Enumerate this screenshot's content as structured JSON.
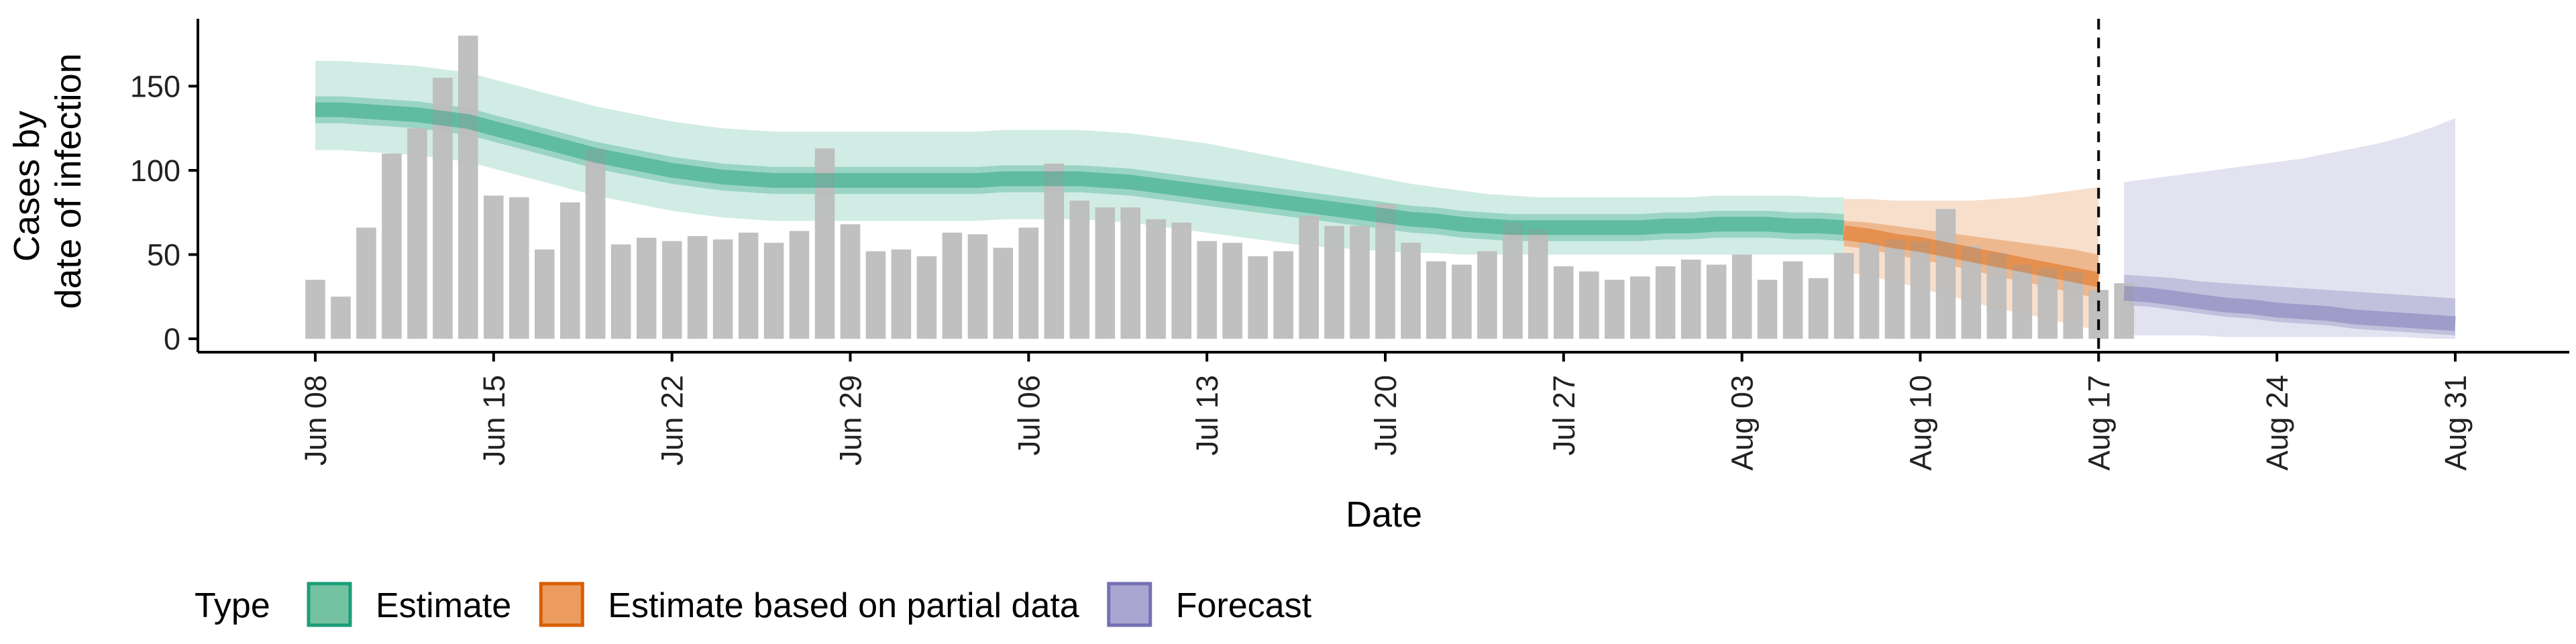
{
  "chart_data": {
    "type": "bar",
    "xlabel": "Date",
    "ylabel_lines": [
      "Cases by",
      "date of infection"
    ],
    "yticks": [
      0,
      50,
      100,
      150
    ],
    "ylim": [
      0,
      190
    ],
    "xticks": [
      "Jun 08",
      "Jun 15",
      "Jun 22",
      "Jun 29",
      "Jul 06",
      "Jul 13",
      "Jul 20",
      "Jul 27",
      "Aug 03",
      "Aug 10",
      "Aug 17",
      "Aug 24",
      "Aug 31"
    ],
    "start_date": "Jun 08",
    "end_date": "Aug 31",
    "vline_date": "Aug 17",
    "reported_cases": [
      35,
      25,
      66,
      110,
      125,
      155,
      180,
      85,
      84,
      53,
      81,
      113,
      56,
      60,
      58,
      61,
      59,
      63,
      57,
      64,
      113,
      68,
      52,
      53,
      49,
      63,
      62,
      54,
      66,
      104,
      82,
      78,
      78,
      71,
      69,
      58,
      57,
      49,
      52,
      73,
      67,
      67,
      80,
      57,
      46,
      44,
      52,
      69,
      65,
      43,
      40,
      35,
      37,
      43,
      47,
      44,
      50,
      35,
      46,
      36,
      51,
      57,
      59,
      58,
      77,
      55,
      51,
      44,
      42,
      40,
      29,
      33
    ],
    "series": [
      {
        "name": "Estimate",
        "color": "#1b9e77",
        "start": "Jun 08",
        "median": [
          136,
          136,
          135,
          134,
          133,
          131,
          129,
          125,
          121,
          117,
          113,
          109,
          106,
          103,
          100,
          98,
          96,
          95,
          94,
          94,
          94,
          94,
          94,
          94,
          94,
          94,
          94,
          95,
          95,
          95,
          95,
          94,
          93,
          91,
          89,
          87,
          85,
          83,
          81,
          79,
          77,
          75,
          73,
          71,
          70,
          68,
          67,
          66,
          66,
          66,
          66,
          66,
          66,
          67,
          67,
          68,
          68,
          68,
          67,
          67,
          66
        ],
        "mid_lo": [
          128,
          128,
          127,
          126,
          125,
          123,
          121,
          117,
          113,
          109,
          105,
          101,
          98,
          95,
          92,
          90,
          88,
          87,
          86,
          86,
          86,
          86,
          86,
          86,
          86,
          86,
          86,
          87,
          87,
          87,
          87,
          86,
          85,
          83,
          81,
          79,
          77,
          75,
          73,
          71,
          69,
          67,
          65,
          63,
          62,
          60,
          59,
          58,
          58,
          58,
          58,
          58,
          58,
          59,
          59,
          60,
          60,
          60,
          59,
          59,
          58
        ],
        "mid_hi": [
          144,
          144,
          143,
          142,
          141,
          139,
          137,
          133,
          129,
          125,
          121,
          117,
          114,
          111,
          108,
          106,
          104,
          103,
          102,
          102,
          102,
          102,
          102,
          102,
          102,
          102,
          102,
          103,
          103,
          103,
          103,
          102,
          101,
          99,
          97,
          95,
          93,
          91,
          89,
          87,
          85,
          83,
          81,
          79,
          78,
          76,
          75,
          74,
          74,
          74,
          74,
          74,
          74,
          75,
          75,
          76,
          76,
          76,
          75,
          75,
          74
        ],
        "lo": [
          112,
          112,
          111,
          110,
          109,
          107,
          105,
          101,
          97,
          93,
          89,
          85,
          82,
          79,
          76,
          74,
          72,
          71,
          70,
          70,
          70,
          70,
          70,
          70,
          70,
          70,
          70,
          71,
          71,
          71,
          71,
          70,
          69,
          67,
          65,
          63,
          61,
          59,
          57,
          55,
          54,
          53,
          52,
          51,
          51,
          50,
          50,
          50,
          50,
          50,
          50,
          50,
          50,
          50,
          50,
          50,
          50,
          50,
          50,
          50,
          50
        ],
        "hi": [
          165,
          165,
          164,
          163,
          162,
          160,
          158,
          154,
          150,
          146,
          142,
          138,
          135,
          132,
          129,
          127,
          125,
          124,
          123,
          123,
          123,
          123,
          123,
          123,
          123,
          123,
          123,
          124,
          124,
          124,
          124,
          123,
          122,
          120,
          118,
          116,
          113,
          110,
          107,
          104,
          101,
          98,
          95,
          92,
          90,
          88,
          86,
          85,
          84,
          84,
          84,
          84,
          84,
          84,
          84,
          85,
          85,
          85,
          85,
          84,
          84
        ]
      },
      {
        "name": "Estimate based on partial data",
        "color": "#d95f02",
        "start": "Aug 07",
        "median": [
          63,
          61,
          58,
          56,
          53,
          50,
          47,
          44,
          41,
          38,
          35
        ],
        "mid_lo": [
          55,
          53,
          50,
          47,
          44,
          41,
          37,
          34,
          31,
          27,
          24
        ],
        "mid_hi": [
          70,
          69,
          67,
          65,
          63,
          61,
          59,
          57,
          55,
          53,
          50
        ],
        "lo": [
          40,
          37,
          34,
          30,
          26,
          22,
          18,
          15,
          12,
          8,
          5
        ],
        "hi": [
          83,
          83,
          82,
          82,
          82,
          82,
          83,
          84,
          86,
          88,
          90
        ]
      },
      {
        "name": "Forecast",
        "color": "#7570b3",
        "start": "Aug 18",
        "median": [
          27,
          26,
          24,
          22,
          20,
          19,
          17,
          16,
          15,
          13,
          12,
          11,
          10,
          9
        ],
        "mid_lo": [
          20,
          19,
          17,
          15,
          13,
          12,
          10,
          9,
          8,
          6,
          5,
          4,
          3,
          2
        ],
        "mid_hi": [
          38,
          37,
          36,
          34,
          33,
          32,
          31,
          30,
          29,
          28,
          27,
          26,
          25,
          24
        ],
        "lo": [
          2,
          2,
          2,
          2,
          1,
          1,
          1,
          1,
          1,
          1,
          1,
          1,
          0,
          0
        ],
        "hi": [
          93,
          95,
          97,
          99,
          101,
          103,
          105,
          107,
          110,
          113,
          116,
          120,
          125,
          131
        ]
      }
    ],
    "legend": {
      "title": "Type",
      "position": "bottom",
      "items": [
        {
          "label": "Estimate",
          "fill": "#75c2a3",
          "stroke": "#1b9e77"
        },
        {
          "label": "Estimate based on partial data",
          "fill": "#eb9c5e",
          "stroke": "#d95f02"
        },
        {
          "label": "Forecast",
          "fill": "#a9a6d2",
          "stroke": "#7570b3"
        }
      ]
    },
    "colors": {
      "bar": "#bdbdbd",
      "axis": "#000000"
    }
  }
}
